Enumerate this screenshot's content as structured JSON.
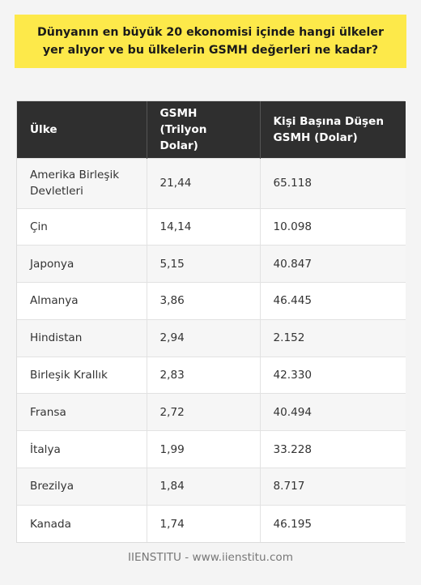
{
  "title": "Dünyanın en büyük 20 ekonomisi içinde hangi ülkeler yer alıyor ve bu ülkelerin GSMH değerleri ne kadar?",
  "table": {
    "headers": [
      "Ülke",
      "GSMH (Trilyon Dolar)",
      "Kişi Başına Düşen GSMH (Dolar)"
    ],
    "rows": [
      [
        "Amerika Birleşik Devletleri",
        "21,44",
        "65.118"
      ],
      [
        "Çin",
        "14,14",
        "10.098"
      ],
      [
        "Japonya",
        "5,15",
        "40.847"
      ],
      [
        "Almanya",
        "3,86",
        "46.445"
      ],
      [
        "Hindistan",
        "2,94",
        "2.152"
      ],
      [
        "Birleşik Krallık",
        "2,83",
        "42.330"
      ],
      [
        "Fransa",
        "2,72",
        "40.494"
      ],
      [
        "İtalya",
        "1,99",
        "33.228"
      ],
      [
        "Brezilya",
        "1,84",
        "8.717"
      ],
      [
        "Kanada",
        "1,74",
        "46.195"
      ]
    ]
  },
  "footer": "IIENSTITU - www.iienstitu.com"
}
